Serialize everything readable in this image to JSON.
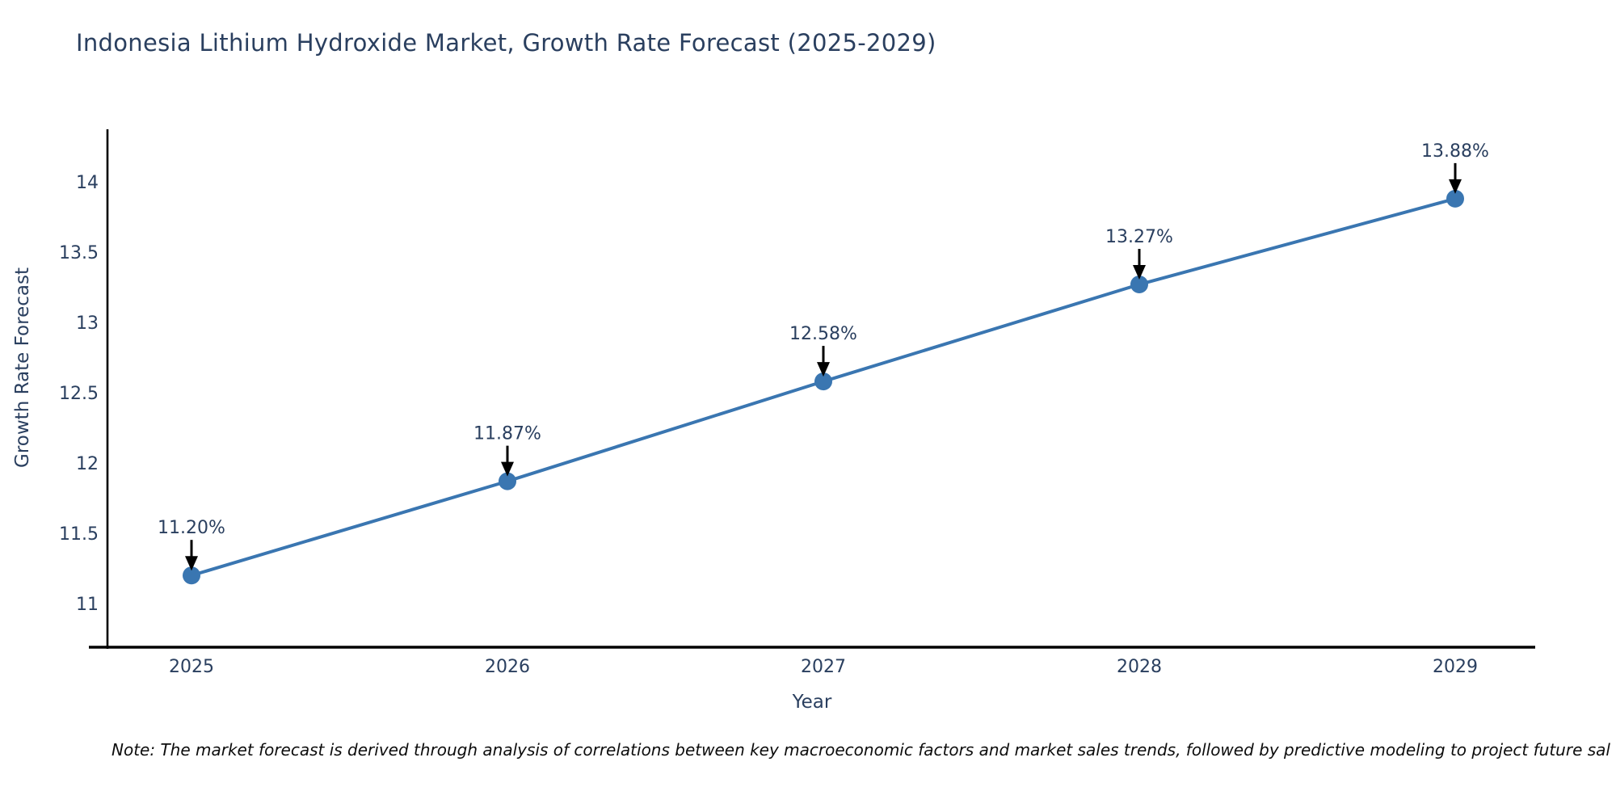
{
  "title": "Indonesia Lithium Hydroxide Market, Growth Rate Forecast (2025-2029)",
  "note": "Note: The market forecast is derived through analysis of correlations between key macroeconomic factors and market sales trends, followed by predictive modeling to project future sal",
  "chart_data": {
    "type": "line",
    "title": "Indonesia Lithium Hydroxide Market, Growth Rate Forecast (2025-2029)",
    "xlabel": "Year",
    "ylabel": "Growth Rate Forecast",
    "x": [
      2025,
      2026,
      2027,
      2028,
      2029
    ],
    "values": [
      11.2,
      11.87,
      12.58,
      13.27,
      13.88
    ],
    "point_labels": [
      "11.20%",
      "11.87%",
      "12.58%",
      "13.27%",
      "13.88%"
    ],
    "yticks": [
      11,
      11.5,
      12,
      12.5,
      13,
      13.5,
      14
    ],
    "ylim": [
      10.7,
      14.37
    ],
    "xlim": [
      2024.67,
      2029.27
    ],
    "grid": false,
    "legend_position": "none",
    "annotations_have_arrows": true,
    "colors": {
      "line": "#3a76b1",
      "marker": "#3a76b1",
      "axis": "#000000",
      "axis_text": "#2a3f5f",
      "annotation_text": "#2a3f5f",
      "arrow": "#000000"
    }
  }
}
